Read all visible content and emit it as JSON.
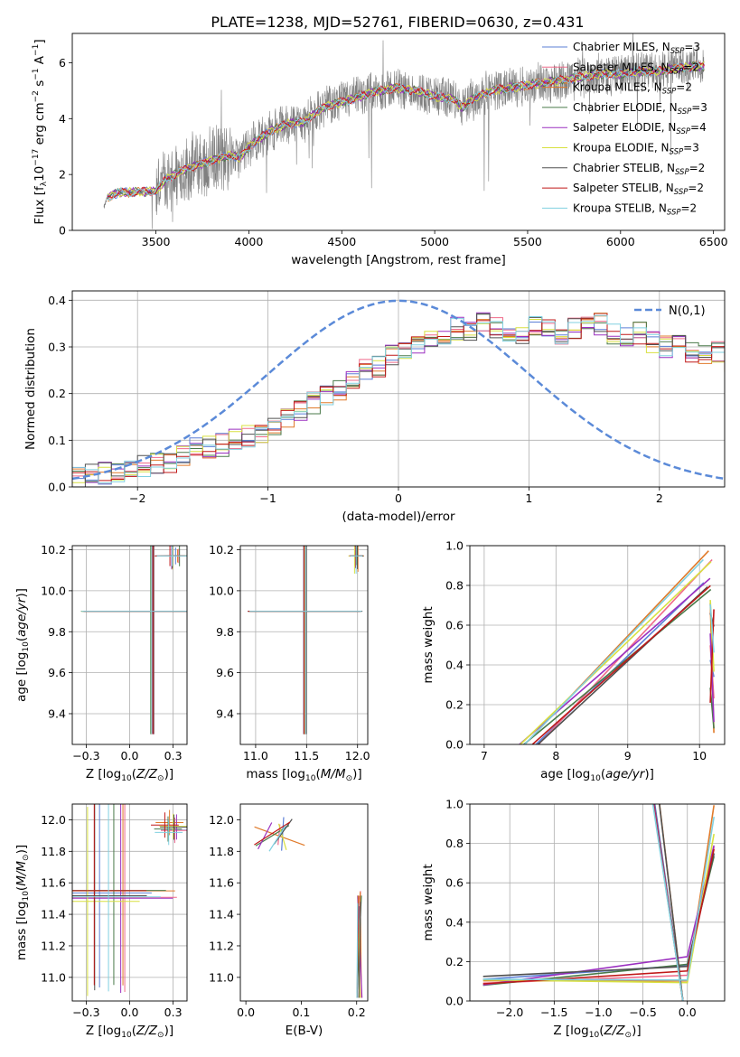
{
  "figure_title": "PLATE=1238, MJD=52761, FIBERID=0630, z=0.431",
  "legend_spectrum": [
    {
      "label": "Chabrier MILES, N$_{SSP}$=3",
      "main": "Chabrier MILES, N",
      "sub": "SSP",
      "tail": "=3",
      "color": "#5b7fd6"
    },
    {
      "label": "Salpeter MILES, N$_{SSP}$=2",
      "main": "Salpeter MILES, N",
      "sub": "SSP",
      "tail": "=2",
      "color": "#f06a8a"
    },
    {
      "label": "Kroupa MILES, N$_{SSP}$=2",
      "main": "Kroupa MILES, N",
      "sub": "SSP",
      "tail": "=2",
      "color": "#e07a2a"
    },
    {
      "label": "Chabrier ELODIE, N$_{SSP}$=3",
      "main": "Chabrier ELODIE, N",
      "sub": "SSP",
      "tail": "=3",
      "color": "#4a7a4a"
    },
    {
      "label": "Salpeter ELODIE, N$_{SSP}$=4",
      "main": "Salpeter ELODIE, N",
      "sub": "SSP",
      "tail": "=4",
      "color": "#9b30c0"
    },
    {
      "label": "Kroupa ELODIE, N$_{SSP}$=3",
      "main": "Kroupa ELODIE, N",
      "sub": "SSP",
      "tail": "=3",
      "color": "#d8e040"
    },
    {
      "label": "Chabrier STELIB, N$_{SSP}$=2",
      "main": "Chabrier STELIB, N",
      "sub": "SSP",
      "tail": "=2",
      "color": "#505050"
    },
    {
      "label": "Salpeter STELIB, N$_{SSP}$=2",
      "main": "Salpeter STELIB, N",
      "sub": "SSP",
      "tail": "=2",
      "color": "#c01818"
    },
    {
      "label": "Kroupa STELIB, N$_{SSP}$=2",
      "main": "Kroupa STELIB, N",
      "sub": "SSP",
      "tail": "=2",
      "color": "#80d0e0"
    }
  ],
  "legend_residual": {
    "label": "N(0,1)",
    "color": "#5b8ad8"
  },
  "chart_data": [
    {
      "type": "line",
      "panel": "spectrum",
      "xlabel": "wavelength [Angstrom, rest frame]",
      "ylabel": "Flux [f_λ 10^-17 erg cm^-2 s^-1 A^-1]",
      "xlim": [
        3050,
        6560
      ],
      "ylim": [
        0,
        7.05
      ],
      "xticks": [
        3500,
        4000,
        4500,
        5000,
        5500,
        6000,
        6500
      ],
      "yticks": [
        0,
        2,
        4,
        6
      ],
      "data_color": "#808080",
      "data_xrange": [
        3220,
        6450
      ],
      "model_continuum": {
        "x": [
          3220,
          3240,
          3300,
          3500,
          3550,
          3600,
          3700,
          3800,
          3900,
          3950,
          4000,
          4100,
          4200,
          4300,
          4400,
          4500,
          4600,
          4700,
          4800,
          4900,
          5000,
          5100,
          5150,
          5200,
          5300,
          5400,
          5500,
          5600,
          5700,
          5800,
          5900,
          6000,
          6100,
          6200,
          6300,
          6450
        ],
        "y": [
          0.8,
          1.2,
          1.35,
          1.4,
          1.8,
          2.0,
          2.3,
          2.5,
          2.7,
          2.6,
          3.0,
          3.5,
          3.8,
          3.9,
          4.4,
          4.6,
          4.8,
          5.0,
          5.1,
          5.0,
          4.8,
          4.7,
          4.4,
          4.7,
          5.0,
          5.1,
          5.2,
          5.3,
          5.4,
          5.5,
          5.6,
          5.6,
          5.7,
          5.7,
          5.8,
          5.9
        ]
      },
      "grid": false,
      "legend": "upper-right"
    },
    {
      "type": "step",
      "panel": "residual-histogram",
      "xlabel": "(data-model)/error",
      "ylabel": "Normed distribution",
      "xlim": [
        -2.5,
        2.5
      ],
      "ylim": [
        0,
        0.42
      ],
      "xticks": [
        -2,
        -1,
        0,
        1,
        2
      ],
      "yticks": [
        0.0,
        0.1,
        0.2,
        0.3,
        0.4
      ],
      "bin_width": 0.1,
      "bin_start": -2.5,
      "base_values": [
        0.02,
        0.025,
        0.03,
        0.035,
        0.04,
        0.045,
        0.05,
        0.055,
        0.07,
        0.08,
        0.085,
        0.09,
        0.1,
        0.11,
        0.12,
        0.13,
        0.15,
        0.16,
        0.18,
        0.2,
        0.21,
        0.23,
        0.25,
        0.26,
        0.28,
        0.29,
        0.3,
        0.31,
        0.33,
        0.34,
        0.33,
        0.35,
        0.34,
        0.33,
        0.32,
        0.35,
        0.34,
        0.33,
        0.34,
        0.35,
        0.35,
        0.33,
        0.32,
        0.33,
        0.31,
        0.3,
        0.3,
        0.29,
        0.28,
        0.29,
        0.27,
        0.28,
        0.28,
        0.27,
        0.27,
        0.26,
        0.28,
        0.29,
        0.28,
        0.27,
        0.25,
        0.24,
        0.23,
        0.2,
        0.18,
        0.18,
        0.15,
        0.14,
        0.16,
        0.17,
        0.16,
        0.15,
        0.14,
        0.13,
        0.12,
        0.11,
        0.1,
        0.1,
        0.09,
        0.08,
        0.08,
        0.07,
        0.07,
        0.07,
        0.08,
        0.07,
        0.06,
        0.07,
        0.08,
        0.07,
        0.06,
        0.07,
        0.07,
        0.08,
        0.07,
        0.06,
        0.07,
        0.08,
        0.07,
        0.08
      ],
      "gaussian": {
        "mean": 0,
        "sigma": 1,
        "style": "dashed"
      },
      "grid": true,
      "legend": "upper-right"
    },
    {
      "type": "scatter",
      "panel": "age-vs-Z",
      "xlabel": "Z [log10(Z/Z_sun)]",
      "ylabel": "age [log10(age/yr)]",
      "xlim": [
        -0.33,
        0.33
      ],
      "ylim": [
        9.25,
        10.22
      ],
      "xticks": [
        -0.25,
        0.0,
        0.25
      ],
      "yticks": [
        9.4,
        9.6,
        9.8,
        10.0,
        10.2
      ],
      "grid": true
    },
    {
      "type": "scatter",
      "panel": "age-vs-mass",
      "xlabel": "mass [log10(M/M_sun)]",
      "ylabel": "",
      "xlim": [
        10.85,
        12.1
      ],
      "ylim": [
        9.25,
        10.22
      ],
      "xticks": [
        11.0,
        11.5,
        12.0
      ],
      "yticks": [
        9.4,
        9.6,
        9.8,
        10.0,
        10.2
      ],
      "grid": true
    },
    {
      "type": "line",
      "panel": "massweight-vs-age",
      "xlabel": "age [log10(age/yr)]",
      "ylabel": "mass weight",
      "xlim": [
        6.8,
        10.35
      ],
      "ylim": [
        0,
        1
      ],
      "xticks": [
        7,
        8,
        9,
        10
      ],
      "yticks": [
        0.0,
        0.2,
        0.4,
        0.6,
        0.8,
        1.0
      ],
      "grid": true
    },
    {
      "type": "scatter",
      "panel": "mass-vs-Z",
      "xlabel": "Z [log10(Z/Z_sun)]",
      "ylabel": "mass [log10(M/M_sun)]",
      "xlim": [
        -0.33,
        0.33
      ],
      "ylim": [
        10.85,
        12.1
      ],
      "xticks": [
        -0.25,
        0.0,
        0.25
      ],
      "yticks": [
        11.0,
        11.2,
        11.4,
        11.6,
        11.8,
        12.0
      ],
      "grid": true
    },
    {
      "type": "scatter",
      "panel": "mass-vs-EBV",
      "xlabel": "E(B-V)",
      "ylabel": "",
      "xlim": [
        -0.01,
        0.22
      ],
      "ylim": [
        10.85,
        12.1
      ],
      "xticks": [
        0.0,
        0.1,
        0.2
      ],
      "yticks": [
        11.0,
        11.2,
        11.4,
        11.6,
        11.8,
        12.0
      ],
      "grid": false
    },
    {
      "type": "line",
      "panel": "massweight-vs-Z",
      "xlabel": "Z [log10(Z/Z_sun)]",
      "ylabel": "mass weight",
      "xlim": [
        -2.45,
        0.42
      ],
      "ylim": [
        0,
        1
      ],
      "xticks": [
        -2.0,
        -1.5,
        -1.0,
        -0.5,
        0.0
      ],
      "yticks": [
        0.0,
        0.2,
        0.4,
        0.6,
        0.8,
        1.0
      ],
      "grid": true
    }
  ]
}
